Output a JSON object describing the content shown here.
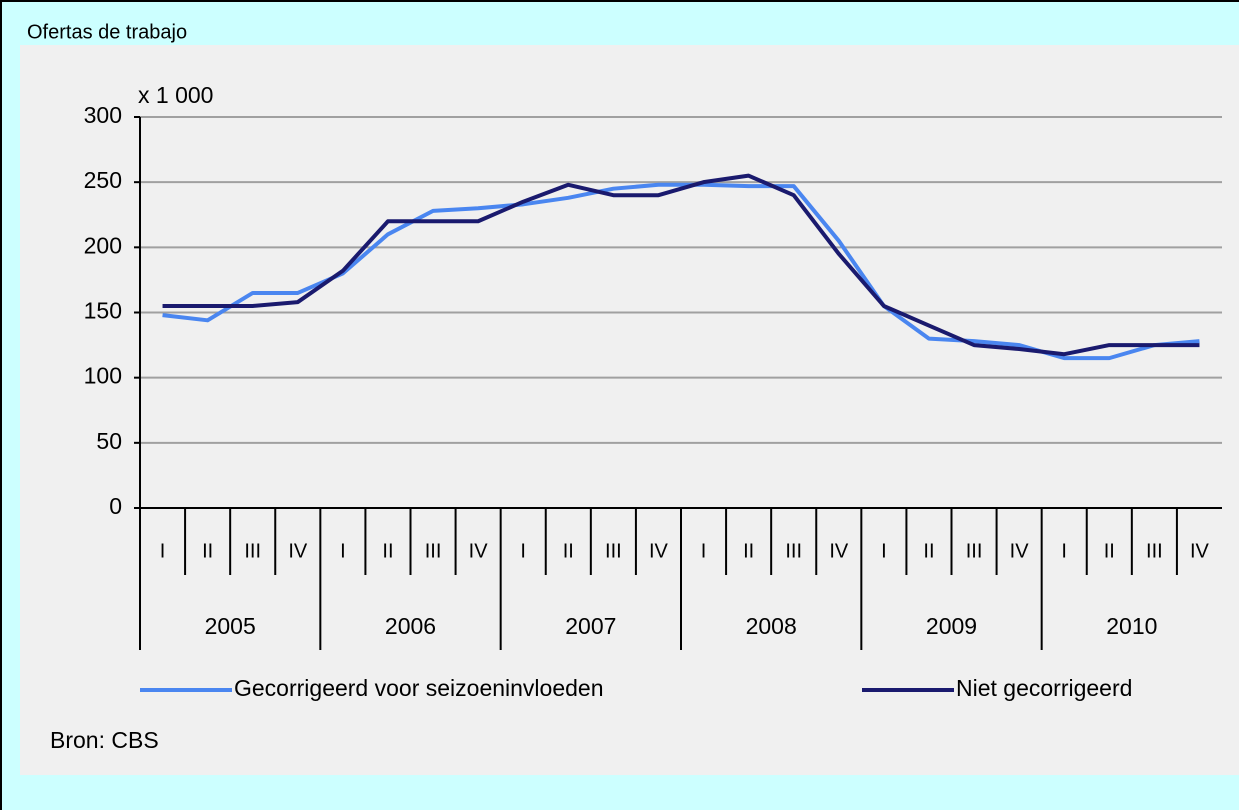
{
  "chart_data": {
    "type": "line",
    "title": "Ofertas de trabajo",
    "y_unit_label": "x 1 000",
    "categories": [
      "I",
      "II",
      "III",
      "IV",
      "I",
      "II",
      "III",
      "IV",
      "I",
      "II",
      "III",
      "IV",
      "I",
      "II",
      "III",
      "IV",
      "I",
      "II",
      "III",
      "IV",
      "I",
      "II",
      "III",
      "IV"
    ],
    "year_labels": [
      "2005",
      "2006",
      "2007",
      "2008",
      "2009",
      "2010"
    ],
    "series": [
      {
        "name": "Gecorrigeerd voor seizoeninvloeden",
        "color": "#4a86f0",
        "values": [
          148,
          144,
          165,
          165,
          180,
          210,
          228,
          230,
          233,
          238,
          245,
          248,
          248,
          247,
          247,
          205,
          155,
          130,
          128,
          125,
          115,
          115,
          125,
          128
        ]
      },
      {
        "name": "Niet gecorrigeerd",
        "color": "#1a1a6e",
        "values": [
          155,
          155,
          155,
          158,
          182,
          220,
          220,
          220,
          235,
          248,
          240,
          240,
          250,
          255,
          240,
          195,
          155,
          140,
          125,
          122,
          118,
          125,
          125,
          125
        ]
      }
    ],
    "ylim": [
      0,
      300
    ],
    "yticks": [
      0,
      50,
      100,
      150,
      200,
      250,
      300
    ],
    "grid": true,
    "source": "Bron: CBS"
  }
}
